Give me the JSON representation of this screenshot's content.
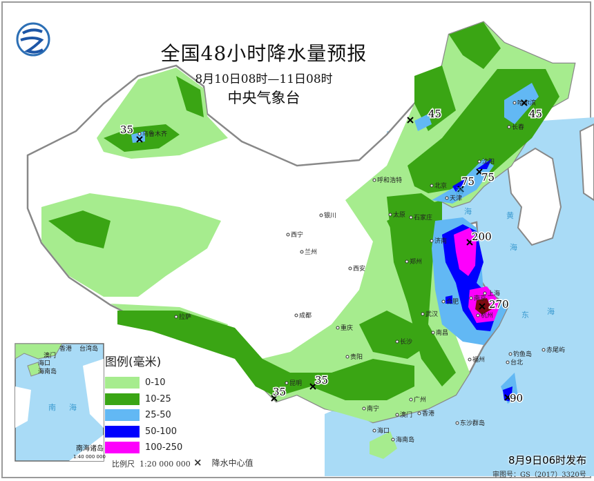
{
  "header": {
    "title": "全国48小时降水量预报",
    "period": "8月10日08时—11日08时",
    "issuer": "中央气象台"
  },
  "legend": {
    "title": "图例(毫米)",
    "items": [
      {
        "label": "0-10",
        "color": "#a6ec8e"
      },
      {
        "label": "10-25",
        "color": "#3aa514"
      },
      {
        "label": "25-50",
        "color": "#62b8f4"
      },
      {
        "label": "50-100",
        "color": "#0000fe"
      },
      {
        "label": "100-250",
        "color": "#fd00fc"
      }
    ],
    "heavy_color": "#7b0a12"
  },
  "footer": {
    "scale_label": "比例尺",
    "scale_value": "1:20 000 000",
    "center_marker": "×",
    "center_label": "降水中心值",
    "issue_time": "8月9日06时发布",
    "approval_number": "审图号：GS（2017）3320号"
  },
  "inset": {
    "title": "南海诸岛",
    "scale": "1:40 000 000",
    "labels": [
      "香港",
      "台湾岛",
      "澳门",
      "海口",
      "海南岛",
      "南",
      "海"
    ]
  },
  "rain_centers": [
    "35",
    "45",
    "45",
    "75",
    "75",
    "200",
    "270",
    "90",
    "35",
    "35"
  ],
  "cities": [
    "乌鲁木齐",
    "哈尔滨",
    "长春",
    "沈阳",
    "北京",
    "天津",
    "呼和浩特",
    "石家庄",
    "太原",
    "济南",
    "郑州",
    "西安",
    "银川",
    "兰州",
    "西宁",
    "成都",
    "重庆",
    "贵阳",
    "昆明",
    "南宁",
    "广州",
    "香港",
    "澳门",
    "海口",
    "海南岛",
    "台北",
    "福州",
    "南昌",
    "长沙",
    "武汉",
    "合肥",
    "南京",
    "上海",
    "杭州",
    "拉萨",
    "钓鱼岛",
    "赤尾屿",
    "东沙群岛"
  ],
  "seas": [
    "渤",
    "海",
    "黄",
    "海",
    "东",
    "海",
    "南",
    "海"
  ],
  "colors": {
    "sea": "#a9dbf6",
    "land": "#ffffff",
    "border": "#808080"
  }
}
